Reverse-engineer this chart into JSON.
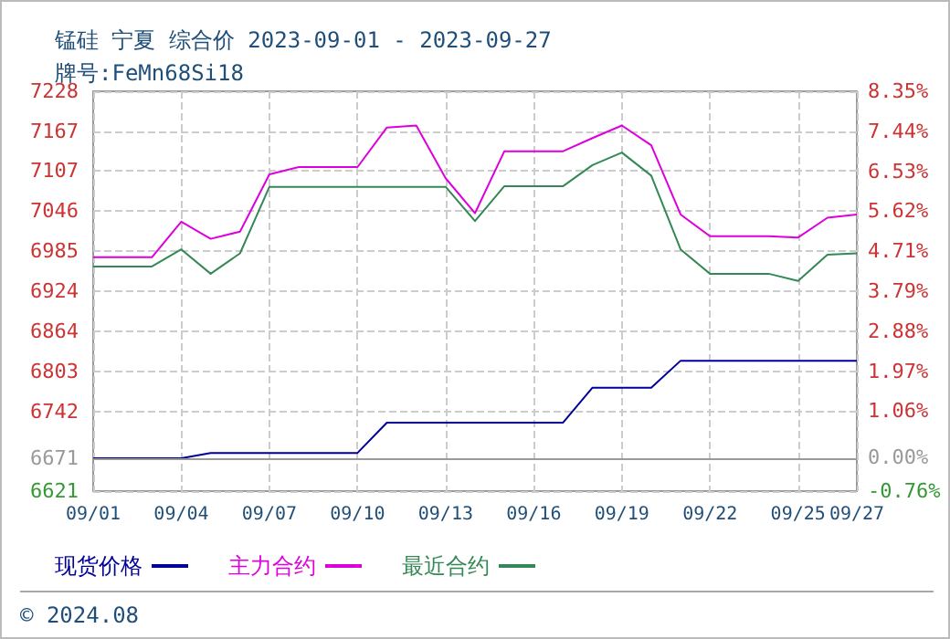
{
  "chart_data": {
    "type": "line",
    "title": "锰硅 宁夏 综合价 2023-09-01 - 2023-09-27",
    "subtitle": "牌号:FeMn68Si18",
    "x": [
      "--09-01",
      "--09-02",
      "--09-03",
      "--09-04",
      "--09-05",
      "--09-06",
      "--09-07",
      "--09-08",
      "--09-09",
      "--09-10",
      "--09-11",
      "--09-12",
      "--09-13",
      "--09-14",
      "--09-15",
      "--09-16",
      "--09-17",
      "--09-18",
      "--09-19",
      "--09-20",
      "--09-21",
      "--09-22",
      "--09-23",
      "--09-24",
      "--09-25",
      "--09-26",
      "--09-27"
    ],
    "series": [
      {
        "name": "现货价格",
        "color": "#000099",
        "values": [
          6671,
          6671,
          6671,
          6671,
          6679,
          6679,
          6679,
          6679,
          6679,
          6679,
          6725,
          6725,
          6725,
          6725,
          6725,
          6725,
          6725,
          6778,
          6778,
          6778,
          6819,
          6819,
          6819,
          6819,
          6819,
          6819,
          6819
        ]
      },
      {
        "name": "主力合约",
        "color": "#dd00dd",
        "values": [
          6976,
          6976,
          6976,
          7030,
          7004,
          7015,
          7102,
          7113,
          7113,
          7113,
          7173,
          7176,
          7096,
          7043,
          7137,
          7137,
          7137,
          7157,
          7176,
          7146,
          7041,
          7008,
          7008,
          7008,
          7006,
          7036,
          7041
        ]
      },
      {
        "name": "最近合约",
        "color": "#338855",
        "values": [
          6962,
          6962,
          6962,
          6988,
          6951,
          6982,
          7083,
          7083,
          7083,
          7083,
          7083,
          7083,
          7083,
          7031,
          7084,
          7084,
          7084,
          7116,
          7135,
          7100,
          6988,
          6951,
          6951,
          6951,
          6940,
          6980,
          6982
        ]
      }
    ],
    "xlim": [
      "--09-01",
      "--09-27"
    ],
    "xticks": [
      {
        "value": "--09-01",
        "label": "09/01"
      },
      {
        "value": "--09-04",
        "label": "09/04"
      },
      {
        "value": "--09-07",
        "label": "09/07"
      },
      {
        "value": "--09-10",
        "label": "09/10"
      },
      {
        "value": "--09-13",
        "label": "09/13"
      },
      {
        "value": "--09-16",
        "label": "09/16"
      },
      {
        "value": "--09-19",
        "label": "09/19"
      },
      {
        "value": "--09-22",
        "label": "09/22"
      },
      {
        "value": "--09-25",
        "label": "09/25"
      },
      {
        "value": "--09-27",
        "label": "09/27"
      }
    ],
    "ylim": [
      6621,
      7228
    ],
    "yticks": [
      6621,
      6671,
      6742,
      6803,
      6864,
      6924,
      6985,
      7046,
      7107,
      7167,
      7228
    ],
    "y2lim": [
      -0.76,
      8.35
    ],
    "y2ticks": [
      {
        "value": -0.76,
        "label": "-0.76%"
      },
      {
        "value": 0,
        "label": "0.00%"
      },
      {
        "value": 1.06,
        "label": "1.06%"
      },
      {
        "value": 1.97,
        "label": "1.97%"
      },
      {
        "value": 2.88,
        "label": "2.88%"
      },
      {
        "value": 3.79,
        "label": "3.79%"
      },
      {
        "value": 4.71,
        "label": "4.71%"
      },
      {
        "value": 5.62,
        "label": "5.62%"
      },
      {
        "value": 6.53,
        "label": "6.53%"
      },
      {
        "value": 7.44,
        "label": "7.44%"
      },
      {
        "value": 8.35,
        "label": "8.35%"
      }
    ],
    "ref_lines": [
      {
        "axis": "y",
        "value": 6671,
        "color": "#999999"
      }
    ],
    "annotations": [
      "© 2024.08"
    ],
    "grid": true,
    "legend": "bottom left",
    "marker": "none",
    "line_style": "solid"
  }
}
